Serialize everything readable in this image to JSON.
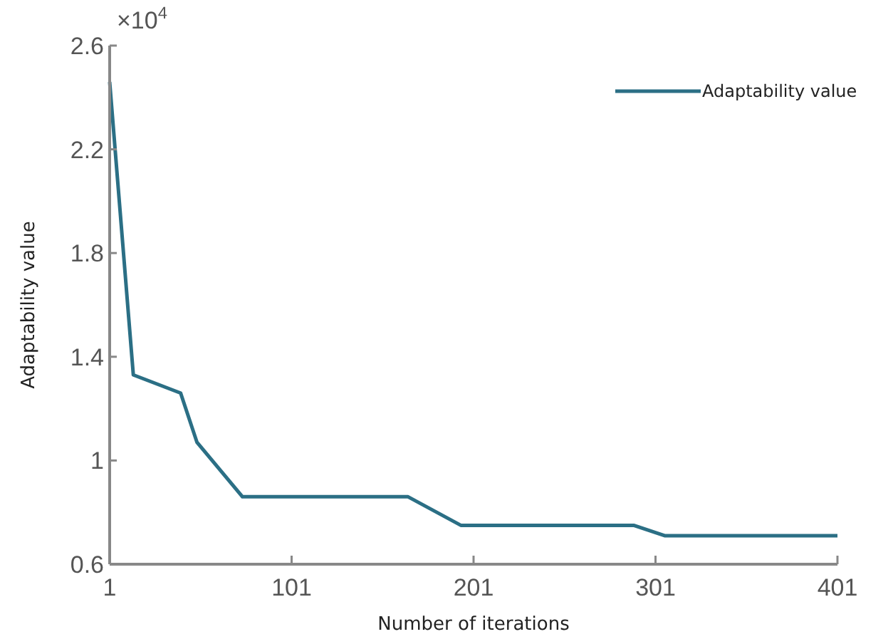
{
  "chart_data": {
    "type": "line",
    "xlabel": "Number of iterations",
    "ylabel": "Adaptability value",
    "annotations": [
      "×10$^{4}$"
    ],
    "x": [
      1,
      14,
      40,
      49,
      74,
      165,
      194,
      289,
      306,
      401
    ],
    "series": [
      {
        "name": "Adaptability value",
        "color": "#2b6f85",
        "values": [
          2.46,
          1.33,
          1.26,
          1.07,
          0.86,
          0.86,
          0.75,
          0.75,
          0.71,
          0.71
        ]
      }
    ],
    "xlim": [
      1,
      401
    ],
    "xticks": [
      1,
      101,
      201,
      301,
      401
    ],
    "ylim": [
      0.6,
      2.6
    ],
    "yticks": [
      0.6,
      1,
      1.4,
      1.8,
      2.2,
      2.6
    ],
    "legend": "top right",
    "grid": false,
    "marker": "none",
    "line_style": "solid"
  }
}
